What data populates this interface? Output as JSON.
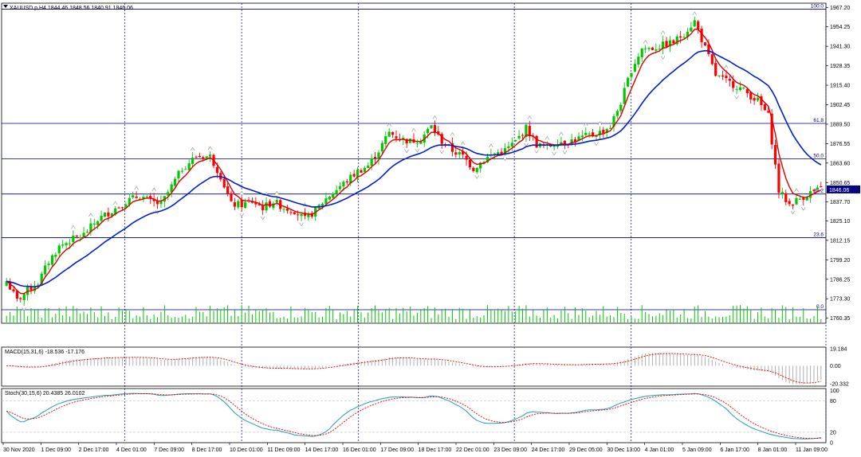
{
  "chart_data": {
    "type": "candlestick",
    "header": {
      "title": "XAUUSD.p,H4  1844.46 1848.56 1840.91 1846.06",
      "macd_label": "MACD(15,31,6) -18.536 -17.176",
      "stoch_label": "Stoch(30,15,6) 20.4385 26.0102"
    },
    "price_axis": {
      "ylim": [
        1757.0,
        1970.0
      ],
      "ticks": [
        "1967.20",
        "1954.25",
        "1941.30",
        "1928.35",
        "1915.40",
        "1902.45",
        "1889.50",
        "1876.55",
        "1863.60",
        "1850.65",
        "1837.70",
        "1825.10",
        "1812.15",
        "1799.20",
        "1786.25",
        "1773.30",
        "1760.35"
      ],
      "current_price": "1846.06"
    },
    "fibonacci": [
      {
        "label": "100.0",
        "price": 1966.0
      },
      {
        "label": "61.8",
        "price": 1890.0
      },
      {
        "label": "50.0",
        "price": 1866.5
      },
      {
        "label": "38.2",
        "price": 1843.0
      },
      {
        "label": "23.6",
        "price": 1814.0
      },
      {
        "label": "0.0",
        "price": 1766.0
      }
    ],
    "x_labels": [
      "30 Nov 2020",
      "1 Dec 09:00",
      "2 Dec 17:00",
      "4 Dec 01:00",
      "7 Dec 09:00",
      "8 Dec 17:00",
      "10 Dec 01:00",
      "11 Dec 09:00",
      "14 Dec 17:00",
      "16 Dec 01:00",
      "17 Dec 09:00",
      "18 Dec 17:00",
      "22 Dec 01:00",
      "23 Dec 09:00",
      "24 Dec 17:00",
      "29 Dec 05:00",
      "30 Dec 13:00",
      "4 Jan 01:00",
      "5 Jan 09:00",
      "6 Jan 17:00",
      "8 Jan 01:00",
      "11 Jan 09:00"
    ],
    "day_separators_after_label": [
      3,
      6,
      9,
      13,
      16,
      21
    ],
    "anchor_closes": [
      [
        0,
        1785
      ],
      [
        3,
        1772
      ],
      [
        6,
        1779
      ],
      [
        9,
        1784
      ],
      [
        12,
        1798
      ],
      [
        15,
        1808
      ],
      [
        18,
        1812
      ],
      [
        22,
        1816
      ],
      [
        26,
        1826
      ],
      [
        30,
        1832
      ],
      [
        34,
        1838
      ],
      [
        38,
        1842
      ],
      [
        41,
        1838
      ],
      [
        44,
        1836
      ],
      [
        47,
        1848
      ],
      [
        50,
        1860
      ],
      [
        54,
        1868
      ],
      [
        58,
        1868
      ],
      [
        61,
        1855
      ],
      [
        64,
        1836
      ],
      [
        67,
        1836
      ],
      [
        70,
        1838
      ],
      [
        73,
        1834
      ],
      [
        76,
        1838
      ],
      [
        79,
        1834
      ],
      [
        82,
        1832
      ],
      [
        85,
        1826
      ],
      [
        88,
        1832
      ],
      [
        91,
        1840
      ],
      [
        94,
        1846
      ],
      [
        97,
        1852
      ],
      [
        100,
        1858
      ],
      [
        103,
        1862
      ],
      [
        106,
        1872
      ],
      [
        109,
        1884
      ],
      [
        112,
        1880
      ],
      [
        115,
        1878
      ],
      [
        118,
        1880
      ],
      [
        121,
        1888
      ],
      [
        124,
        1878
      ],
      [
        127,
        1872
      ],
      [
        130,
        1868
      ],
      [
        133,
        1860
      ],
      [
        136,
        1866
      ],
      [
        139,
        1870
      ],
      [
        142,
        1872
      ],
      [
        145,
        1878
      ],
      [
        148,
        1887
      ],
      [
        151,
        1876
      ],
      [
        154,
        1874
      ],
      [
        157,
        1878
      ],
      [
        160,
        1878
      ],
      [
        163,
        1880
      ],
      [
        166,
        1882
      ],
      [
        169,
        1884
      ],
      [
        172,
        1888
      ],
      [
        175,
        1904
      ],
      [
        178,
        1926
      ],
      [
        181,
        1940
      ],
      [
        184,
        1940
      ],
      [
        187,
        1942
      ],
      [
        190,
        1944
      ],
      [
        193,
        1950
      ],
      [
        196,
        1958
      ],
      [
        199,
        1940
      ],
      [
        202,
        1922
      ],
      [
        205,
        1918
      ],
      [
        208,
        1915
      ],
      [
        211,
        1910
      ],
      [
        214,
        1905
      ],
      [
        217,
        1895
      ],
      [
        220,
        1845
      ],
      [
        223,
        1836
      ],
      [
        226,
        1840
      ],
      [
        229,
        1844
      ],
      [
        232,
        1846
      ]
    ],
    "price_colors": {
      "bull": "#00c800",
      "bear": "#ff0000",
      "ma_fast": "#e00000",
      "ma_slow": "#0020d0",
      "grid": "#000080"
    },
    "macd": {
      "ylim": [
        -23.0,
        21.0
      ],
      "ticks": [
        "19.184",
        "0.00",
        "-20.332"
      ]
    },
    "stochastic": {
      "ylim": [
        0,
        104
      ],
      "ticks": [
        "100",
        "80",
        "20",
        "0"
      ]
    }
  }
}
